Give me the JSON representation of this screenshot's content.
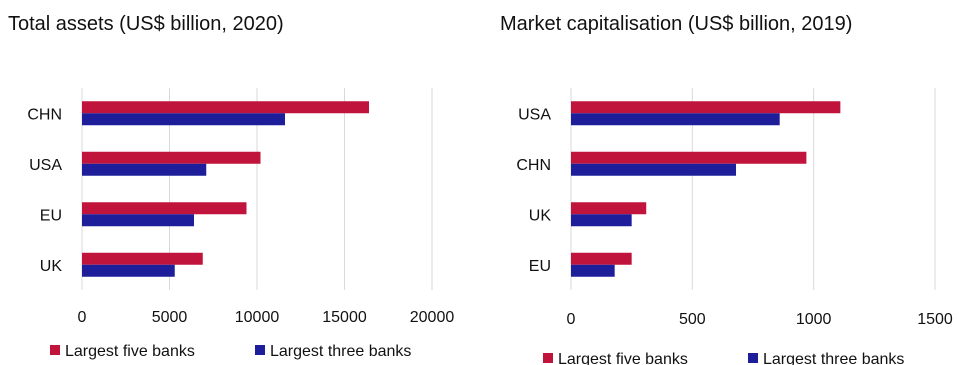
{
  "colors": {
    "five": "#C0143C",
    "three": "#1E1E9A",
    "grid": "#D9D9D9"
  },
  "chart_data": [
    {
      "type": "bar",
      "orientation": "horizontal",
      "title": "Total assets (US$ billion, 2020)",
      "categories": [
        "CHN",
        "USA",
        "EU",
        "UK"
      ],
      "series": [
        {
          "name": "Largest five banks",
          "values": [
            16400,
            10200,
            9400,
            6900
          ]
        },
        {
          "name": "Largest three banks",
          "values": [
            11600,
            7100,
            6400,
            5300
          ]
        }
      ],
      "xlim": [
        0,
        20000
      ],
      "xticks": [
        "0",
        "5000",
        "10000",
        "15000",
        "20000"
      ],
      "grid": true,
      "legend": "bottom"
    },
    {
      "type": "bar",
      "orientation": "horizontal",
      "title": "Market capitalisation (US$ billion, 2019)",
      "categories": [
        "USA",
        "CHN",
        "UK",
        "EU"
      ],
      "series": [
        {
          "name": "Largest five banks",
          "values": [
            1110,
            970,
            310,
            250
          ]
        },
        {
          "name": "Largest three banks",
          "values": [
            860,
            680,
            250,
            180
          ]
        }
      ],
      "xlim": [
        0,
        1500
      ],
      "xticks": [
        "0",
        "500",
        "1000",
        "1500"
      ],
      "grid": true,
      "legend": "bottom"
    }
  ]
}
